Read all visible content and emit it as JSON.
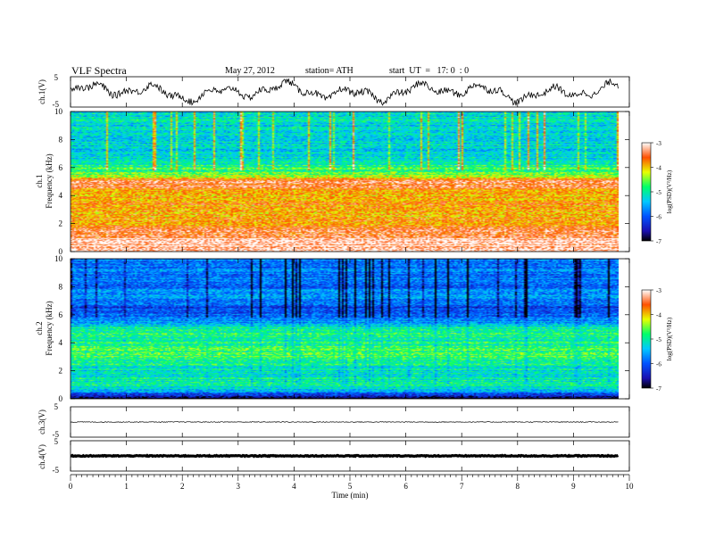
{
  "header": {
    "title": "VLF Spectra",
    "date": "May 27, 2012",
    "station": "station= ATH",
    "start": "start  UT  =   17: 0  : 0"
  },
  "panels": {
    "ch1": {
      "ylabel": "ch.1(V)",
      "ticks": [
        "5",
        "-5"
      ]
    },
    "spec1": {
      "ylabel_top": "ch.1",
      "ylabel": "Frequency  (kHz)",
      "ticks": [
        "10",
        "8",
        "6",
        "4",
        "2",
        "0"
      ]
    },
    "spec2": {
      "ylabel_top": "ch.2",
      "ylabel": "Frequency  (kHz)",
      "ticks": [
        "10",
        "8",
        "6",
        "4",
        "2",
        "0"
      ]
    },
    "ch3": {
      "ylabel": "ch.3(V)",
      "ticks": [
        "5",
        "-5"
      ]
    },
    "ch4": {
      "ylabel": "ch.4(V)",
      "ticks": [
        "5",
        "-5"
      ]
    }
  },
  "colorbar": {
    "label": "log(PSD)(V²/Hz)",
    "ticks": [
      "-3",
      "-4",
      "-5",
      "-6",
      "-7"
    ]
  },
  "xaxis": {
    "label": "Time  (min)",
    "ticks": [
      "0",
      "1",
      "2",
      "3",
      "4",
      "5",
      "6",
      "7",
      "8",
      "9",
      "10"
    ]
  },
  "chart_data": [
    {
      "type": "line",
      "name": "ch.1(V)",
      "xlabel": "Time (min)",
      "ylabel": "ch.1(V)",
      "xlim": [
        0,
        10
      ],
      "ylim": [
        -5,
        5
      ],
      "note": "oscillating trace between approx -5 and 5 V"
    },
    {
      "type": "heatmap",
      "ylabel": "ch.1 Frequency (kHz)",
      "xlim": [
        0,
        10
      ],
      "ylim": [
        0,
        10
      ],
      "color_label": "log(PSD)(V²/Hz)",
      "color_range": [
        -7,
        -3
      ],
      "freq_profile_khz": [
        0,
        1,
        2,
        3,
        4,
        5,
        5.5,
        6,
        7,
        8,
        9,
        10
      ],
      "level_profile": [
        -3,
        -3.3,
        -3.8,
        -3.8,
        -4.0,
        -3.3,
        -4.6,
        -4.8,
        -5.3,
        -5.2,
        -5.2,
        -5.2
      ]
    },
    {
      "type": "heatmap",
      "ylabel": "ch.2 Frequency (kHz)",
      "xlim": [
        0,
        10
      ],
      "ylim": [
        0,
        10
      ],
      "color_label": "log(PSD)(V²/Hz)",
      "color_range": [
        -7,
        -3
      ],
      "freq_profile_khz": [
        0,
        0.5,
        1,
        2,
        3,
        4,
        5,
        5.5,
        6,
        6.5,
        7,
        8,
        9,
        10
      ],
      "level_profile": [
        -7,
        -5.5,
        -5.0,
        -5.2,
        -4.7,
        -4.9,
        -5.0,
        -5.6,
        -5.9,
        -6.2,
        -5.7,
        -5.8,
        -5.8,
        -5.8
      ]
    },
    {
      "type": "line",
      "name": "ch.3(V)",
      "xlim": [
        0,
        10
      ],
      "ylim": [
        -5,
        5
      ],
      "approx_level": 0
    },
    {
      "type": "line",
      "name": "ch.4(V)",
      "xlim": [
        0,
        10
      ],
      "ylim": [
        -5,
        5
      ],
      "approx_level": 0
    }
  ]
}
